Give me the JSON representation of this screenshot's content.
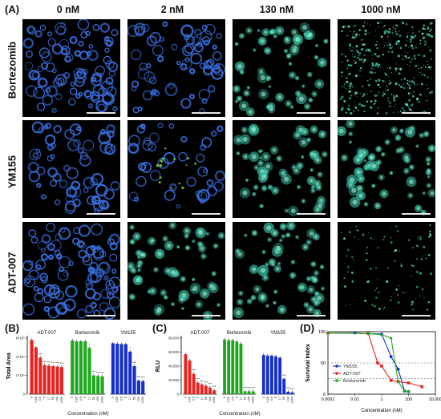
{
  "panel_labels": {
    "A": "(A)",
    "B": "(B)",
    "C": "(C)",
    "D": "(D)"
  },
  "column_headers": [
    "0 nM",
    "2 nM",
    "130 nM",
    "1000 nM"
  ],
  "row_labels": [
    "Bortezomib",
    "YM155",
    "ADT-007"
  ],
  "colors": {
    "adt007": "#e8221f",
    "bortezomib": "#1fa81f",
    "ym155": "#1530c8",
    "blue_stain": "#3a6fe0",
    "green_stain": "#37c9a8"
  },
  "chart_data": [
    {
      "id": "B",
      "type": "bar",
      "ylabel": "Total Area",
      "xlabel": "Concentration (nM)",
      "ytick_labels": [
        "0",
        "2×10⁵",
        "4×10⁵",
        "6×10⁵"
      ],
      "ylim": [
        0,
        600000
      ],
      "categories": [
        "0",
        "0.05",
        "0.5",
        "5",
        "17",
        "50",
        "100",
        "1000"
      ],
      "series": [
        {
          "name": "ADT-007",
          "values": [
            580000,
            500000,
            390000,
            310000,
            305000,
            300000,
            295000,
            290000
          ],
          "sig": [
            "",
            "",
            "***",
            "***",
            "***",
            "***",
            "***",
            "***"
          ]
        },
        {
          "name": "Bortezomib",
          "values": [
            575000,
            565000,
            565000,
            565000,
            495000,
            200000,
            195000,
            190000
          ],
          "sig": [
            "",
            "",
            "",
            "",
            "*",
            "***",
            "***",
            "***"
          ]
        },
        {
          "name": "YM155",
          "values": [
            545000,
            540000,
            535000,
            535000,
            455000,
            300000,
            145000,
            140000
          ],
          "sig": [
            "",
            "",
            "",
            "",
            "*",
            "***",
            "***",
            "***"
          ]
        }
      ]
    },
    {
      "id": "C",
      "type": "bar",
      "ylabel": "RLU",
      "xlabel": "Concentration (nM)",
      "ytick_labels": [
        "0",
        "20,000",
        "40,000",
        "60,000",
        "80,000"
      ],
      "ylim": [
        0,
        80000
      ],
      "categories": [
        "0",
        "0.05",
        "0.5",
        "5",
        "17",
        "50",
        "100",
        "1000"
      ],
      "series": [
        {
          "name": "ADT-007",
          "values": [
            57000,
            48000,
            29000,
            16500,
            14000,
            12000,
            9500,
            5500
          ],
          "sig": [
            "",
            "",
            "***",
            "***",
            "***",
            "***",
            "***",
            "***"
          ]
        },
        {
          "name": "Bortezomib",
          "values": [
            78000,
            77000,
            77000,
            75000,
            72000,
            4000,
            4000,
            4000
          ],
          "sig": [
            "",
            "",
            "",
            "",
            "",
            "***",
            "***",
            "***"
          ]
        },
        {
          "name": "YM155",
          "values": [
            56000,
            55000,
            55000,
            54000,
            52000,
            22000,
            3500,
            2500
          ],
          "sig": [
            "",
            "",
            "",
            "",
            "",
            "***",
            "***",
            "***"
          ]
        }
      ]
    },
    {
      "id": "D",
      "type": "line",
      "ylabel": "Survival Index",
      "xlabel": "Concentration (nM)",
      "xscale": "log",
      "xlim": [
        0.0001,
        10000
      ],
      "ylim": [
        0,
        100
      ],
      "xtick_labels": [
        "0.0001",
        "0.01",
        "1",
        "100",
        "10,000"
      ],
      "ytick_labels": [
        "0",
        "50",
        "100"
      ],
      "reference_lines_y": [
        50,
        25
      ],
      "legend": "bottom-left",
      "series": [
        {
          "name": "YM155",
          "x": [
            0.0001,
            0.01,
            0.1,
            1,
            5,
            17,
            50,
            100
          ],
          "y": [
            98,
            98,
            97,
            96,
            60,
            40,
            5,
            4
          ]
        },
        {
          "name": "ADT-007",
          "x": [
            0.0001,
            0.1,
            0.5,
            1,
            5,
            17,
            100,
            1000
          ],
          "y": [
            98,
            97,
            50,
            45,
            22,
            20,
            18,
            12
          ]
        },
        {
          "name": "Bortezomib",
          "x": [
            0.0001,
            0.1,
            1,
            5,
            17,
            50,
            100
          ],
          "y": [
            98,
            97,
            95,
            90,
            20,
            5,
            4
          ]
        }
      ]
    }
  ]
}
